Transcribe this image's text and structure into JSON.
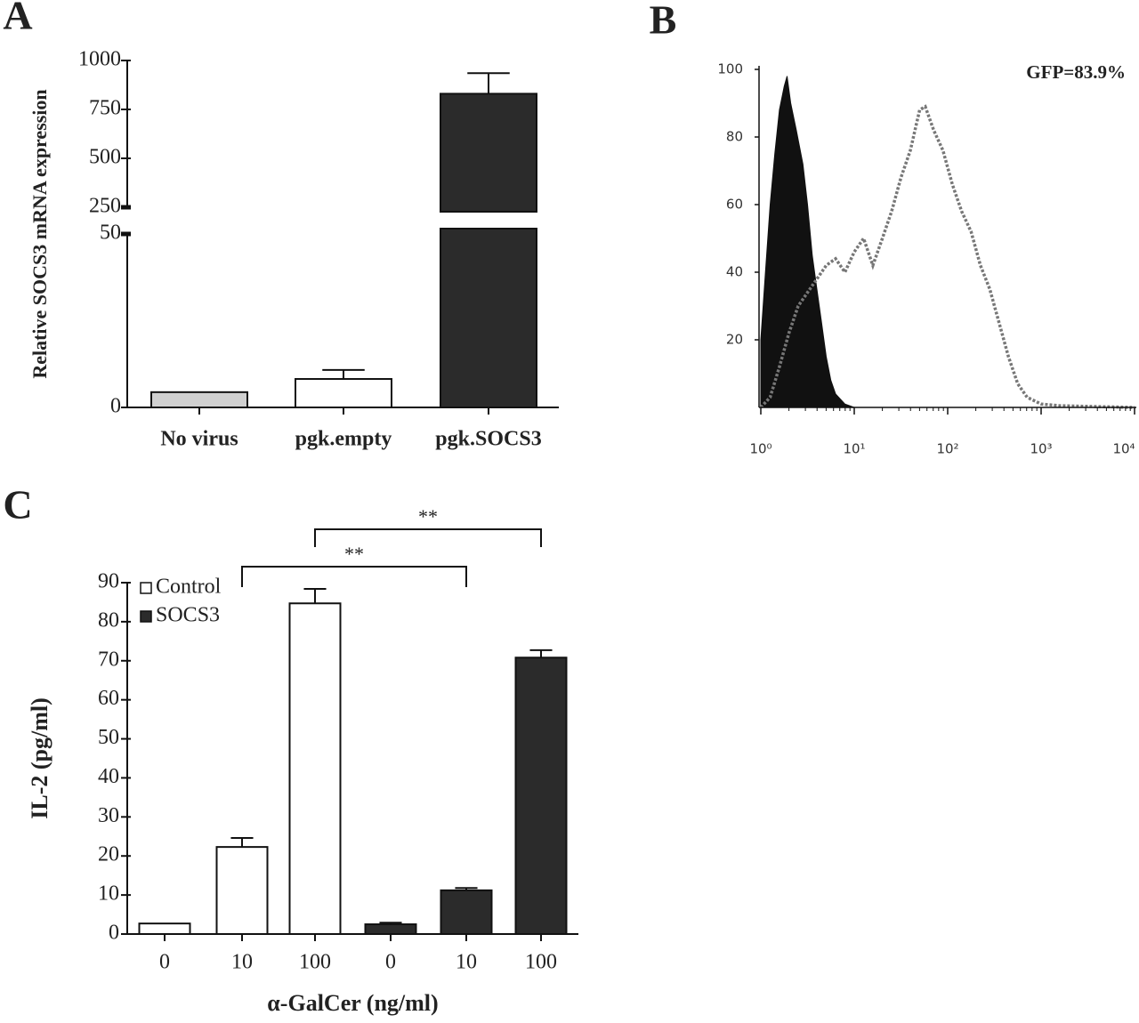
{
  "chart_data": [
    {
      "type": "bar",
      "panel": "A",
      "ylabel": "Relative SOCS3 mRNA expression",
      "categories": [
        "No virus",
        "pgk.empty",
        "pgk.SOCS3"
      ],
      "values": [
        4.4,
        8.2,
        830
      ],
      "errors": [
        null,
        2.6,
        105
      ],
      "colors": [
        "#d0d0d0",
        "#ffffff",
        "#2b2b2b"
      ],
      "ylim": [
        0,
        1000
      ],
      "ybreak": [
        50,
        250
      ],
      "yticks": [
        0,
        50,
        250,
        500,
        750,
        1000
      ]
    },
    {
      "type": "area",
      "panel": "B",
      "annotation": "GFP=83.9%",
      "xscale": "log",
      "xlim": [
        1,
        10000
      ],
      "xticks": [
        {
          "value": 1,
          "label": "10⁰"
        },
        {
          "value": 10,
          "label": "10¹"
        },
        {
          "value": 100,
          "label": "10²"
        },
        {
          "value": 1000,
          "label": "10³"
        },
        {
          "value": 10000,
          "label": "10⁴"
        }
      ],
      "ylim": [
        0,
        100
      ],
      "yticks": [
        20,
        40,
        60,
        80,
        100
      ],
      "series": [
        {
          "style": "filled",
          "color": "#111111",
          "x": [
            1,
            1.12,
            1.26,
            1.41,
            1.58,
            1.78,
            1.91,
            2.09,
            2.4,
            2.82,
            3.16,
            3.55,
            3.98,
            4.47,
            5.01,
            5.62,
            6.31,
            7.94,
            10
          ],
          "values": [
            20,
            40,
            60,
            75,
            88,
            95,
            98,
            90,
            82,
            72,
            60,
            45,
            35,
            25,
            15,
            8,
            4,
            1,
            0
          ]
        },
        {
          "style": "dotted",
          "color": "#777777",
          "x": [
            1,
            1.26,
            1.58,
            2.0,
            2.51,
            3.16,
            3.98,
            5.01,
            6.31,
            7.94,
            10,
            12.6,
            15.8,
            20,
            25.1,
            31.6,
            39.8,
            50.1,
            57.5,
            70.8,
            89.1,
            112,
            141,
            178,
            224,
            282,
            355,
            447,
            562,
            708,
            1000,
            1585,
            10000
          ],
          "values": [
            0,
            3,
            12,
            22,
            30,
            34,
            38,
            42,
            44,
            40,
            46,
            50,
            42,
            50,
            58,
            68,
            76,
            88,
            89,
            82,
            76,
            66,
            58,
            52,
            42,
            35,
            25,
            15,
            7,
            3,
            1,
            0.5,
            0
          ]
        }
      ]
    },
    {
      "type": "bar",
      "panel": "C",
      "ylabel": "IL-2 (pg/ml)",
      "xlabel": "α-GalCer (ng/ml)",
      "categories": [
        "0",
        "10",
        "100"
      ],
      "series": [
        {
          "name": "Control",
          "color": "#ffffff",
          "values": [
            2.7,
            22.3,
            84.7
          ],
          "errors": [
            null,
            2.3,
            3.7
          ]
        },
        {
          "name": "SOCS3",
          "color": "#2b2b2b",
          "values": [
            2.5,
            11.2,
            70.8
          ],
          "errors": [
            0.4,
            0.6,
            1.9
          ]
        }
      ],
      "ylim": [
        0,
        90
      ],
      "yticks": [
        0,
        10,
        20,
        30,
        40,
        50,
        60,
        70,
        80,
        90
      ],
      "annotations": [
        "**",
        "**"
      ]
    }
  ]
}
